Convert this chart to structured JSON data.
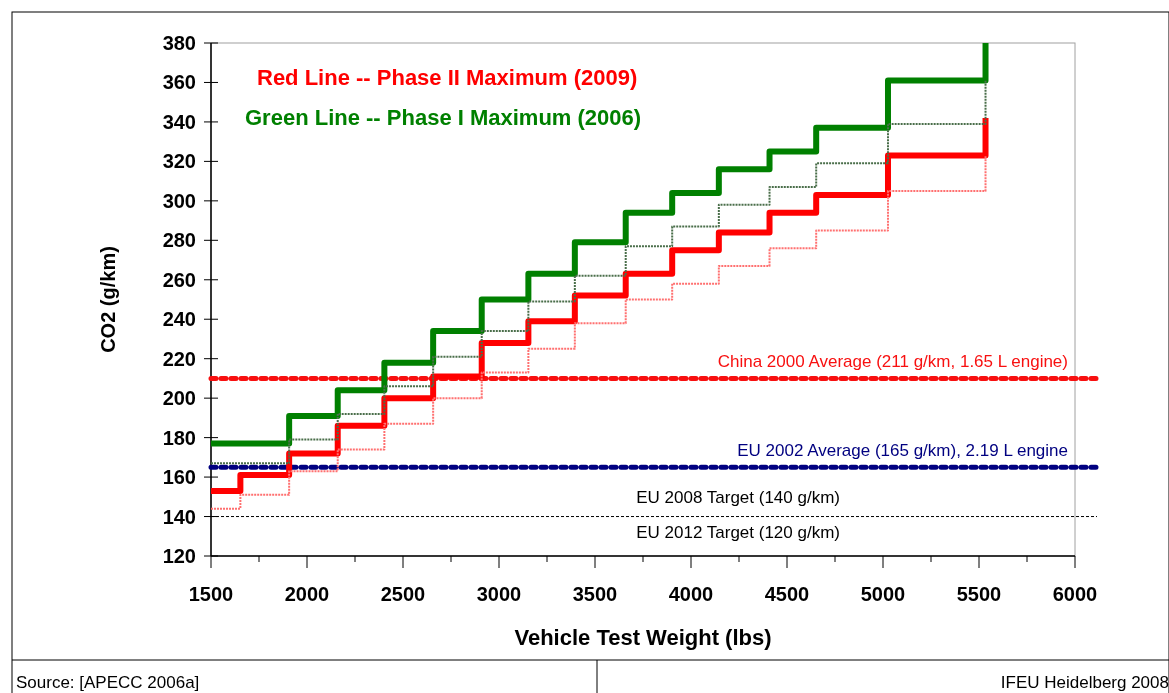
{
  "chart_data": {
    "type": "step",
    "xlabel": "Vehicle Test Weight (lbs)",
    "ylabel": "CO2 (g/km)",
    "xlim": [
      1500,
      6000
    ],
    "xticks": [
      1500,
      {
        "value": 1750,
        "label": null
      },
      2000,
      {
        "value": 2250,
        "label": null
      },
      2500,
      {
        "value": 2750,
        "label": null
      },
      3000,
      {
        "value": 3250,
        "label": null
      },
      3500,
      {
        "value": 3750,
        "label": null
      },
      4000,
      {
        "value": 4250,
        "label": null
      },
      4500,
      {
        "value": 4750,
        "label": null
      },
      5000,
      {
        "value": 5250,
        "label": null
      },
      5500,
      {
        "value": 5750,
        "label": null
      },
      6000
    ],
    "ylim": [
      120,
      380
    ],
    "yticks": [
      120,
      140,
      160,
      180,
      200,
      220,
      240,
      260,
      280,
      300,
      320,
      340,
      360,
      380
    ],
    "grid": false,
    "legend": "top left",
    "marker": "none",
    "series": [
      {
        "name": "Red Line -- Phase II Maximum (2009)",
        "color": "#ff0000",
        "line_style": "solid",
        "x": [
          1500,
          1653,
          1907,
          2160,
          2403,
          2657,
          2910,
          3153,
          3395,
          3660,
          3902,
          4145,
          4409,
          4652,
          5026,
          5534
        ],
        "values": [
          153,
          161,
          172,
          186,
          200,
          211,
          228,
          239,
          252,
          263,
          275,
          284,
          294,
          303,
          323,
          342
        ]
      },
      {
        "name": "Green Line -- Phase I Maximum (2006)",
        "color": "#008000",
        "line_style": "solid",
        "x": [
          1500,
          1907,
          2160,
          2403,
          2657,
          2910,
          3153,
          3395,
          3660,
          3902,
          4145,
          4409,
          4652,
          5026,
          5534
        ],
        "values": [
          177,
          191,
          204,
          218,
          234,
          250,
          263,
          279,
          294,
          304,
          316,
          325,
          337,
          361,
          380
        ]
      },
      {
        "color": "#4a6e4a",
        "line_style": "dotted",
        "x": [
          1500,
          1907,
          2160,
          2403,
          2657,
          2910,
          3153,
          3395,
          3660,
          3902,
          4145,
          4409,
          4652,
          5026,
          5534
        ],
        "values": [
          167,
          179,
          192,
          206,
          221,
          234,
          249,
          262,
          277,
          287,
          298,
          307,
          319,
          339,
          361
        ]
      },
      {
        "color": "#ff7070",
        "line_style": "dotted",
        "x": [
          1500,
          1653,
          1907,
          2160,
          2403,
          2657,
          2910,
          3153,
          3395,
          3660,
          3902,
          4145,
          4409,
          4652,
          5026,
          5534
        ],
        "values": [
          144,
          151,
          163,
          174,
          187,
          200,
          213,
          225,
          238,
          250,
          258,
          267,
          276,
          285,
          305,
          323
        ]
      }
    ],
    "ref_lines": [
      {
        "axis": "y",
        "value": 210,
        "label": "China 2000 Average (211 g/km, 1.65 L engine)",
        "color": "#f81010",
        "line_style": "dotted"
      },
      {
        "axis": "y",
        "value": 165,
        "label": "EU 2002 Average (165 g/km), 2.19 L engine",
        "color": "#000080",
        "line_style": "dotted"
      },
      {
        "axis": "y",
        "value": 140,
        "label": "EU 2008 Target (140 g/km)",
        "color": "#000000",
        "line_style": "dashed"
      }
    ],
    "annotations": [
      "Source: [APECC 2006a]",
      "IFEU Heidelberg 2008",
      "EU 2012 Target (120 g/km)"
    ]
  }
}
